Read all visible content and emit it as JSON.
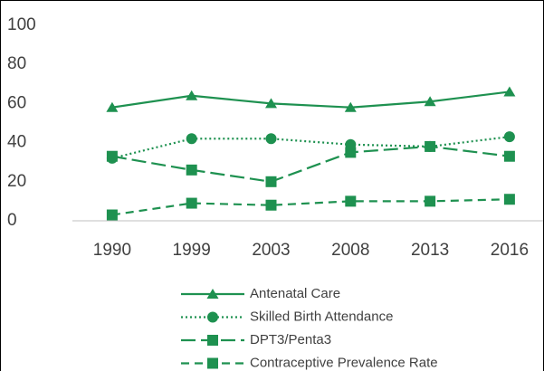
{
  "chart_data": {
    "type": "line",
    "categories": [
      "1990",
      "1999",
      "2003",
      "2008",
      "2013",
      "2016"
    ],
    "series": [
      {
        "name": "Antenatal Care",
        "color": "#1e9150",
        "dash": "solid",
        "marker": "triangle",
        "values": [
          58,
          64,
          60,
          58,
          61,
          66
        ]
      },
      {
        "name": "Skilled Birth Attendance",
        "color": "#1e9150",
        "dash": "dotted",
        "marker": "circle",
        "values": [
          32,
          42,
          42,
          39,
          38,
          43
        ]
      },
      {
        "name": "DPT3/Penta3",
        "color": "#1e9150",
        "dash": "long-dash",
        "marker": "square",
        "values": [
          33,
          26,
          20,
          35,
          38,
          33
        ]
      },
      {
        "name": "Contraceptive Prevalence Rate",
        "color": "#1e9150",
        "dash": "dash",
        "marker": "square",
        "values": [
          3,
          9,
          8,
          10,
          10,
          11
        ]
      }
    ],
    "ylim": [
      0,
      100
    ],
    "yticks": [
      0,
      20,
      40,
      60,
      80,
      100
    ],
    "grid": false,
    "legend": "bottom"
  }
}
